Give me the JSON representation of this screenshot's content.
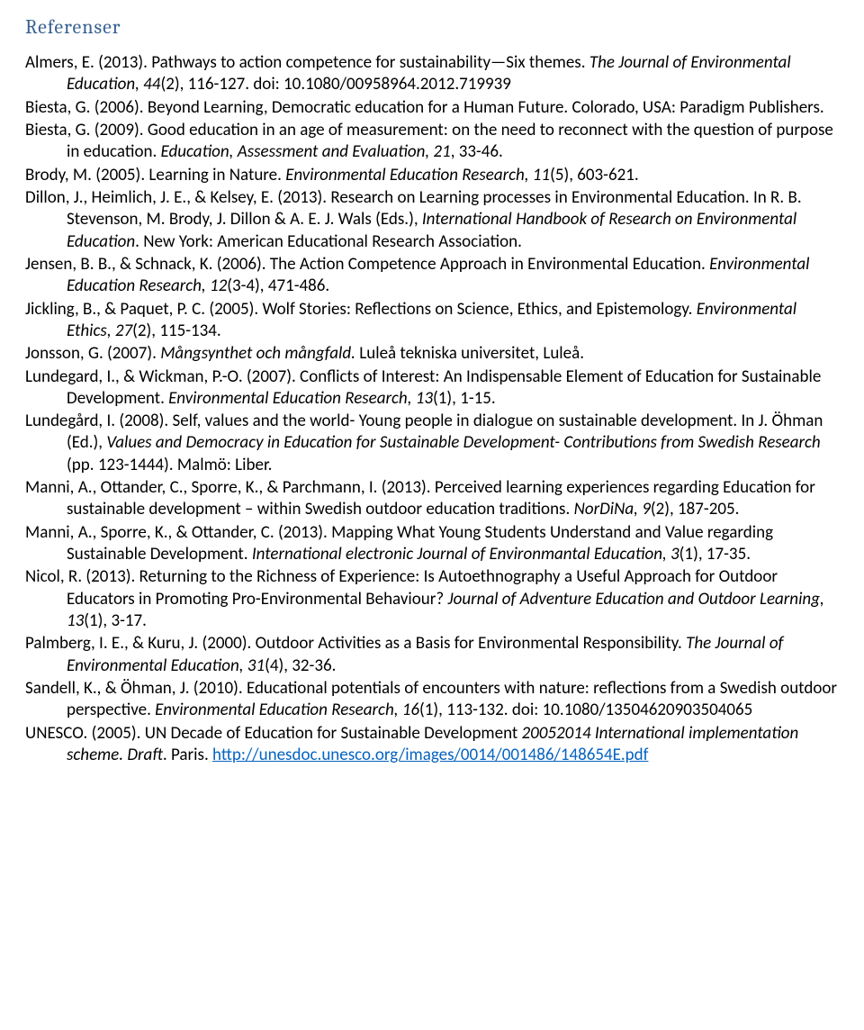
{
  "heading": "Referenser",
  "references": [
    {
      "segments": [
        {
          "t": "Almers, E. (2013). Pathways to action competence for sustainability—Six themes. "
        },
        {
          "t": "The Journal of Environmental Education, 44",
          "i": true
        },
        {
          "t": "(2), 116-127. doi: 10.1080/00958964.2012.719939"
        }
      ]
    },
    {
      "segments": [
        {
          "t": "Biesta, G. (2006). Beyond Learning, Democratic education for a Human Future. Colorado, USA: Paradigm Publishers."
        }
      ]
    },
    {
      "segments": [
        {
          "t": "Biesta, G. (2009). Good education in an age of measurement: on the need to reconnect with the question of purpose in education. "
        },
        {
          "t": "Education, Assessment and Evaluation, 21",
          "i": true
        },
        {
          "t": ", 33-46."
        }
      ]
    },
    {
      "segments": [
        {
          "t": "Brody, M. (2005). Learning in Nature. "
        },
        {
          "t": "Environmental Education Research, 11",
          "i": true
        },
        {
          "t": "(5), 603-621."
        }
      ]
    },
    {
      "segments": [
        {
          "t": "Dillon, J., Heimlich, J. E., & Kelsey, E. (2013). Research on Learning processes in Environmental Education. In R. B. Stevenson, M. Brody, J. Dillon & A. E. J. Wals (Eds.), "
        },
        {
          "t": "International Handbook of Research on Environmental Education",
          "i": true
        },
        {
          "t": ". New York: American Educational Research Association."
        }
      ]
    },
    {
      "segments": [
        {
          "t": "Jensen, B. B., & Schnack, K. (2006). The Action Competence Approach in Environmental Education. "
        },
        {
          "t": "Environmental Education Research, 12",
          "i": true
        },
        {
          "t": "(3-4), 471-486."
        }
      ]
    },
    {
      "segments": [
        {
          "t": "Jickling, B., & Paquet, P. C. (2005). Wolf Stories: Reflections on Science, Ethics, and Epistemology. "
        },
        {
          "t": "Environmental Ethics, 27",
          "i": true
        },
        {
          "t": "(2), 115-134."
        }
      ]
    },
    {
      "segments": [
        {
          "t": "Jonsson, G. (2007). "
        },
        {
          "t": "Mångsynthet och mångfald.",
          "i": true
        },
        {
          "t": " Luleå tekniska universitet, Luleå."
        }
      ]
    },
    {
      "segments": [
        {
          "t": "Lundegard, I., & Wickman, P.-O. (2007). Conflicts of Interest: An Indispensable Element of Education for Sustainable Development. "
        },
        {
          "t": "Environmental Education Research, 13",
          "i": true
        },
        {
          "t": "(1), 1-15."
        }
      ]
    },
    {
      "segments": [
        {
          "t": "Lundegård, I. (2008). Self, values and the world- Young people in dialogue on sustainable development. In J. Öhman (Ed.), "
        },
        {
          "t": "Values and Democracy in Education for Sustainable Development- Contributions from Swedish Research",
          "i": true
        },
        {
          "t": " (pp. 123-1444). Malmö: Liber."
        }
      ]
    },
    {
      "segments": [
        {
          "t": "Manni, A., Ottander, C., Sporre, K., & Parchmann, I. (2013). Perceived learning experiences regarding Education for sustainable development – within Swedish outdoor education traditions. "
        },
        {
          "t": "NorDiNa, 9",
          "i": true
        },
        {
          "t": "(2), 187-205."
        }
      ]
    },
    {
      "segments": [
        {
          "t": "Manni, A., Sporre, K., & Ottander, C. (2013). Mapping What Young Students Understand and Value regarding Sustainable Development. "
        },
        {
          "t": "International electronic Journal of Environmantal Education, 3",
          "i": true
        },
        {
          "t": "(1), 17-35."
        }
      ]
    },
    {
      "segments": [
        {
          "t": "Nicol, R. (2013). Returning to the Richness of Experience: Is Autoethnography a Useful Approach for Outdoor Educators in Promoting Pro-Environmental Behaviour? "
        },
        {
          "t": "Journal of Adventure Education and Outdoor Learning, 13",
          "i": true
        },
        {
          "t": "(1), 3-17."
        }
      ]
    },
    {
      "segments": [
        {
          "t": "Palmberg, I. E., & Kuru, J. (2000). Outdoor Activities as a Basis for Environmental Responsibility. "
        },
        {
          "t": "The Journal of Environmental Education, 31",
          "i": true
        },
        {
          "t": "(4), 32-36."
        }
      ]
    },
    {
      "segments": [
        {
          "t": "Sandell, K., & Öhman, J. (2010). Educational potentials of encounters with nature: reflections from a Swedish outdoor perspective. "
        },
        {
          "t": "Environmental Education Research, 16",
          "i": true
        },
        {
          "t": "(1), 113-132. doi: 10.1080/13504620903504065"
        }
      ]
    },
    {
      "segments": [
        {
          "t": "UNESCO. (2005). UN Decade of Education for Sustainable Development "
        },
        {
          "t": "20052014 International implementation scheme. Draft",
          "i": true
        },
        {
          "t": ". Paris. "
        },
        {
          "t": "http://unesdoc.unesco.org/images/0014/001486/148654E.pdf",
          "link": true
        }
      ]
    }
  ]
}
